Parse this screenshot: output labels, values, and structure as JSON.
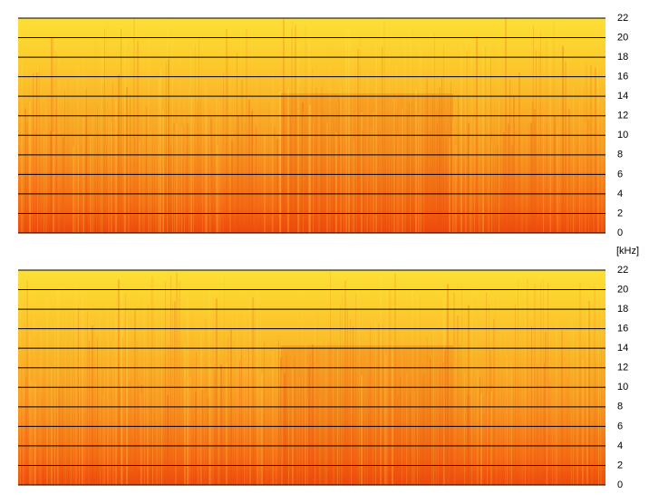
{
  "chart_data": [
    {
      "type": "spectrogram",
      "ylim": [
        0,
        22
      ],
      "yticks": [
        0,
        2,
        4,
        6,
        8,
        10,
        12,
        14,
        16,
        18,
        20,
        22
      ],
      "grid": true
    },
    {
      "type": "spectrogram",
      "ylabel": "[kHz]",
      "ylim": [
        0,
        22
      ],
      "yticks": [
        0,
        2,
        4,
        6,
        8,
        10,
        12,
        14,
        16,
        18,
        20,
        22
      ],
      "grid": true
    }
  ]
}
